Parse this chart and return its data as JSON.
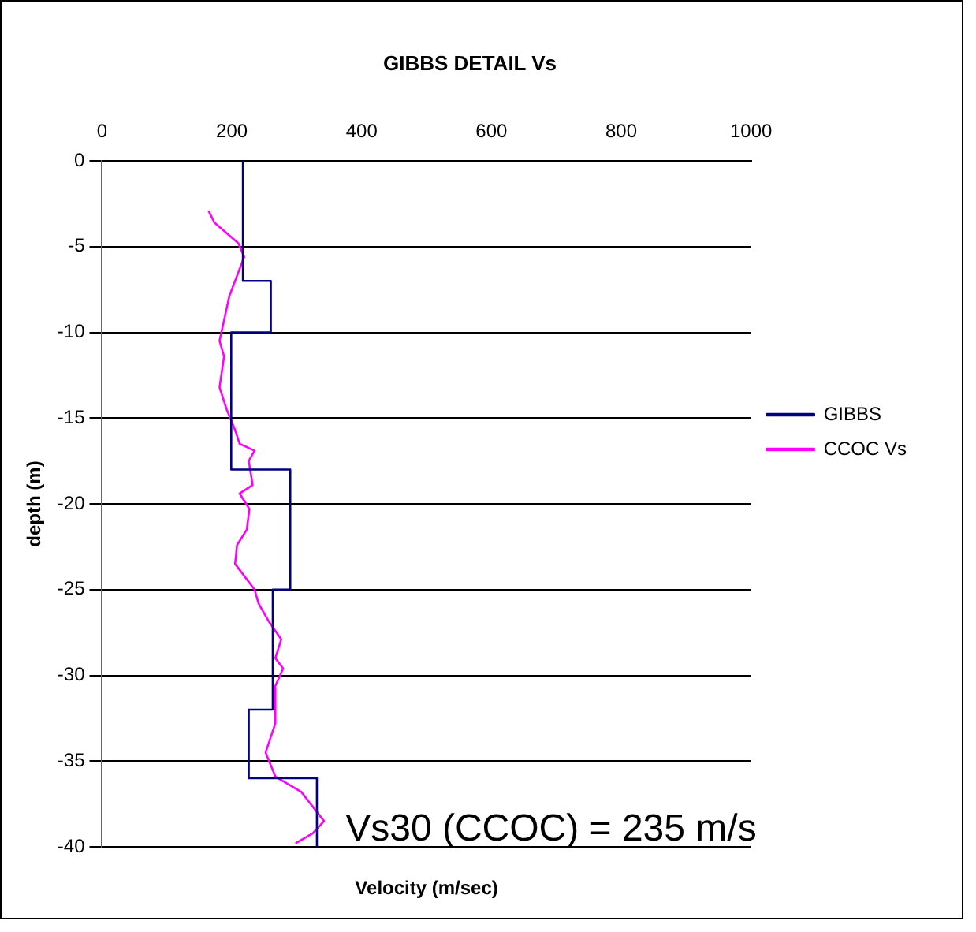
{
  "chart_data": {
    "type": "line",
    "title": "GIBBS DETAIL Vs",
    "xlabel": "Velocity (m/sec)",
    "ylabel": "depth (m)",
    "xlim": [
      0,
      1000
    ],
    "xticks": [
      0,
      200,
      400,
      600,
      800,
      1000
    ],
    "ylim": [
      -40,
      0
    ],
    "yticks": [
      -40,
      -35,
      -30,
      -25,
      -20,
      -15,
      -10,
      -5,
      0
    ],
    "grid": "y",
    "legend": "right",
    "marker": "none",
    "line_style": "solid",
    "annotations": [
      "Vs30 (CCOC) = 235 m/s"
    ],
    "series": [
      {
        "name": "GIBBS",
        "color": "#000080",
        "x": [
          217,
          217,
          260,
          260,
          199,
          199,
          290,
          290,
          263,
          263,
          226,
          226,
          331,
          331
        ],
        "values": [
          0,
          -7,
          -7,
          -10,
          -10,
          -18,
          -18,
          -25,
          -25,
          -32,
          -32,
          -36,
          -36,
          -40
        ]
      },
      {
        "name": "CCOC Vs",
        "color": "#ff00ff",
        "x": [
          164,
          173,
          210,
          219,
          210,
          196,
          188,
          181,
          188,
          181,
          192,
          205,
          212,
          235,
          226,
          232,
          212,
          227,
          223,
          208,
          205,
          219,
          235,
          241,
          256,
          276,
          267,
          279,
          266,
          267,
          252,
          267,
          307,
          342,
          325,
          298
        ],
        "values": [
          -2.9,
          -3.6,
          -4.8,
          -5.6,
          -6.5,
          -7.9,
          -9.3,
          -10.5,
          -11.4,
          -13.2,
          -14.5,
          -15.7,
          -16.5,
          -16.9,
          -17.5,
          -18.9,
          -19.4,
          -20.3,
          -21.5,
          -22.4,
          -23.5,
          -24.2,
          -25,
          -25.8,
          -26.8,
          -27.9,
          -29,
          -29.6,
          -30.7,
          -32.8,
          -34.5,
          -35.9,
          -36.8,
          -38.5,
          -39.2,
          -39.8
        ]
      }
    ]
  }
}
